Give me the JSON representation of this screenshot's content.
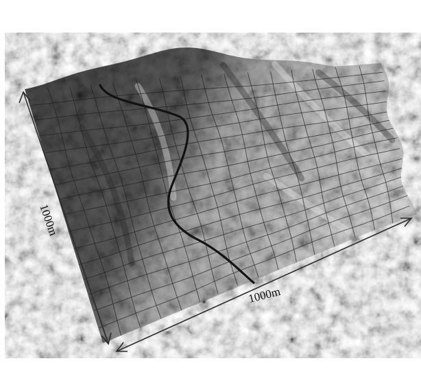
{
  "figure": {
    "labels": {
      "left_dimension": "1000m",
      "bottom_dimension": "1000m"
    },
    "grid": {
      "rows": 16,
      "cols": 16
    },
    "colors": {
      "background": "#ffffff",
      "terrain_dark": "#3d3d3d",
      "terrain_mid": "#8a8a8a",
      "terrain_light": "#cfcfcf",
      "grid_line": "#1e1e1e",
      "road": "#121212",
      "arrow": "#2a2a2a"
    }
  }
}
